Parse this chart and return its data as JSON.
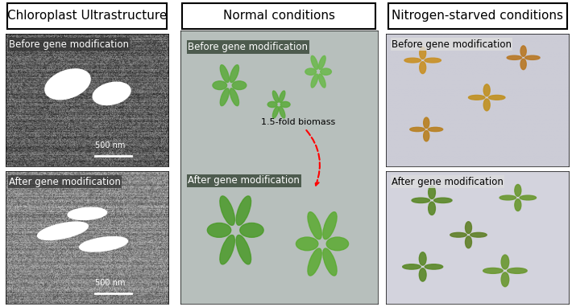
{
  "title_col1": "Chloroplast Ultrastructure",
  "title_col2": "Normal conditions",
  "title_col3": "Nitrogen-starved conditions",
  "label_before": "Before gene modification",
  "label_after": "After gene modification",
  "annotation_text": "1.5-fold biomass",
  "scalebar_text": "500 nm",
  "bg_color": "#ffffff",
  "border_color": "#000000",
  "text_color": "#000000",
  "title_fontsize": 11,
  "label_fontsize": 8.5,
  "annotation_fontsize": 8,
  "figsize": [
    7.1,
    3.82
  ],
  "dpi": 100
}
